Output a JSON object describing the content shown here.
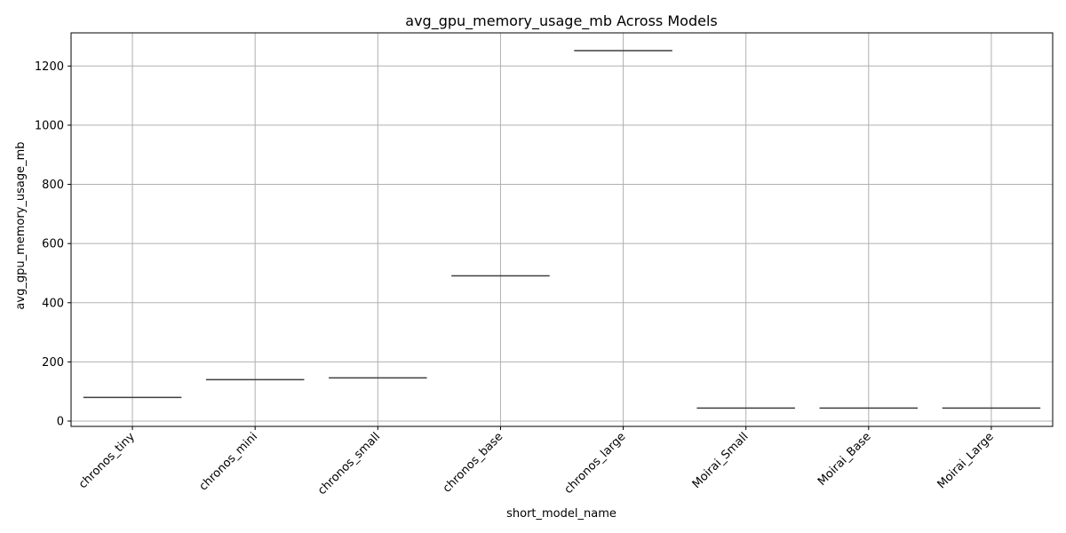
{
  "chart_data": {
    "type": "box",
    "title": "avg_gpu_memory_usage_mb Across Models",
    "xlabel": "short_model_name",
    "ylabel": "avg_gpu_memory_usage_mb",
    "categories": [
      "chronos_tiny",
      "chronos_mini",
      "chronos_small",
      "chronos_base",
      "chronos_large",
      "Moirai_Small",
      "Moirai_Base",
      "Moirai_Large"
    ],
    "values": [
      80,
      140,
      146,
      491,
      1252,
      44,
      44,
      44
    ],
    "ylim": [
      -18,
      1312
    ],
    "yticks": [
      0,
      200,
      400,
      600,
      800,
      1000,
      1200
    ],
    "grid": true,
    "colors": {
      "box": "#3f3f3f",
      "grid": "#b0b0b0"
    }
  }
}
